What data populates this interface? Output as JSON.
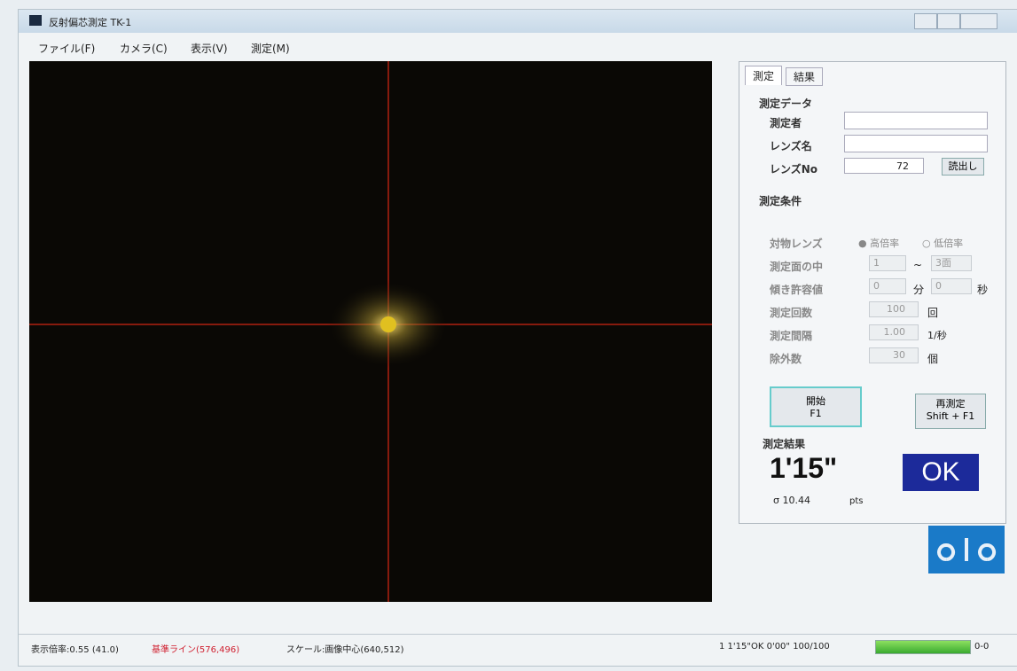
{
  "window": {
    "title": "反射偏芯測定 TK-1"
  },
  "menu": [
    "ファイル(F)",
    "カメラ(C)",
    "表示(V)",
    "測定(M)"
  ],
  "tabs": [
    "測定",
    "結果"
  ],
  "form": {
    "data_heading": "測定データ",
    "operator_label": "測定者",
    "lens_name_label": "レンズ名",
    "lens_no_label": "レンズNo",
    "lens_no_value": "72",
    "read_button": "読出し",
    "conditions_heading": "測定条件",
    "objective_label": "対物レンズ",
    "objective_options": [
      "高倍率",
      "低倍率"
    ],
    "surface_label": "測定面の中",
    "surface_from": "1",
    "surface_sep": "~",
    "surface_to": "3面",
    "tolerance_label": "傾き許容値",
    "tolerance_min": "0",
    "tolerance_min_unit": "分",
    "tolerance_sec": "0",
    "tolerance_sec_unit": "秒",
    "count_label": "測定回数",
    "count_value": "100",
    "count_unit": "回",
    "interval_label": "測定間隔",
    "interval_value": "1.00",
    "interval_unit": "1/秒",
    "exclude_label": "除外数",
    "exclude_value": "30",
    "exclude_unit": "個",
    "start_button": [
      "開始",
      "F1"
    ],
    "remeasure_button": [
      "再測定",
      "Shift + F1"
    ],
    "result_heading": "測定結果",
    "result_value": "1'15\"",
    "sigma": "σ 10.44",
    "sigma_unit": "pts",
    "judgement": "OK"
  },
  "status": {
    "zoom": "表示倍率:0.55 (41.0)",
    "reference": "基準ライン(576,496)",
    "scale": "スケール:画像中心(640,512)",
    "summary": "1  1'15\"OK  0'00\"  100/100",
    "range": "0-0"
  }
}
